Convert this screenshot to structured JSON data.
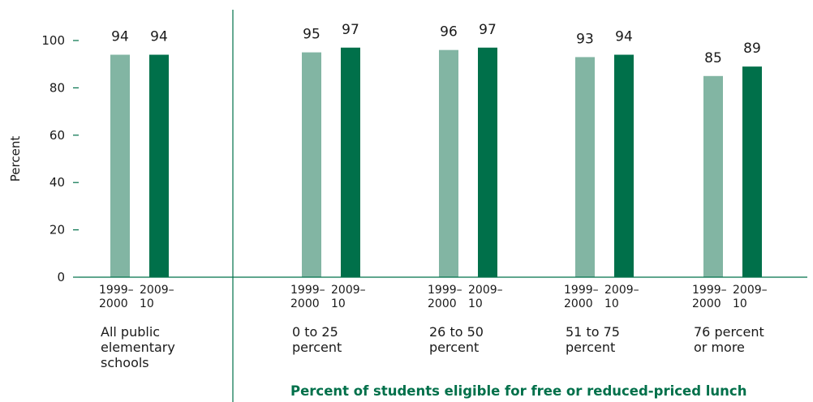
{
  "chart_data": {
    "type": "bar",
    "ylabel": "Percent",
    "ylim": [
      0,
      100
    ],
    "yticks": [
      0,
      20,
      40,
      60,
      80,
      100
    ],
    "grid": false,
    "xlabel": "Percent of students eligible for free or reduced-priced lunch",
    "colors": {
      "1999-2000": "#82b5a3",
      "2009-10": "#00704a",
      "axis": "#00704a",
      "xlabel": "#00704a"
    },
    "categories": [
      "All public elementary schools",
      "0 to 25 percent",
      "26 to 50 percent",
      "51 to 75 percent",
      "76 percent or more"
    ],
    "category_label_lines": [
      [
        "All public",
        "elementary",
        "schools"
      ],
      [
        "0 to 25",
        "percent"
      ],
      [
        "26 to 50",
        "percent"
      ],
      [
        "51 to 75",
        "percent"
      ],
      [
        "76 percent",
        "or more"
      ]
    ],
    "series": [
      {
        "label_lines": [
          "1999–",
          "2000"
        ],
        "values": [
          94,
          95,
          96,
          93,
          85
        ]
      },
      {
        "label_lines": [
          "2009–",
          "10"
        ],
        "values": [
          94,
          97,
          97,
          94,
          89
        ]
      }
    ]
  }
}
